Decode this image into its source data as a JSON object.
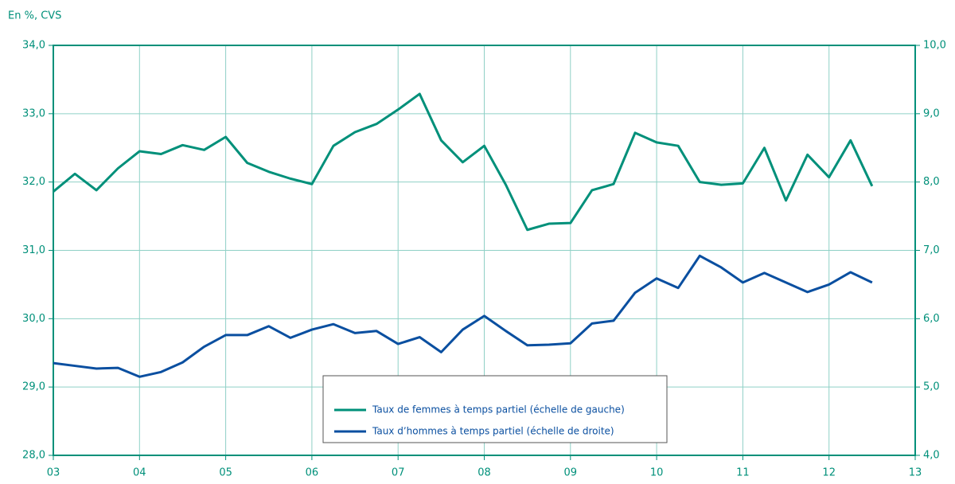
{
  "chart_data": {
    "type": "line",
    "unit_label": "En %, CVS",
    "x": [
      3,
      3.25,
      3.5,
      3.75,
      4,
      4.25,
      4.5,
      4.75,
      5,
      5.25,
      5.5,
      5.75,
      6,
      6.25,
      6.5,
      6.75,
      7,
      7.25,
      7.5,
      7.75,
      8,
      8.25,
      8.5,
      8.75,
      9,
      9.25,
      9.5,
      9.75,
      10,
      10.25,
      10.5,
      10.75,
      11,
      11.25,
      11.5,
      11.75,
      12,
      12.25,
      12.5
    ],
    "series": [
      {
        "name": "Taux de femmes à temps partiel (échelle de gauche)",
        "color": "#00907a",
        "axis": "y",
        "values": [
          31.86,
          32.12,
          31.88,
          32.2,
          32.45,
          32.41,
          32.54,
          32.47,
          32.66,
          32.28,
          32.15,
          32.05,
          31.97,
          32.53,
          32.73,
          32.85,
          33.06,
          33.29,
          32.61,
          32.29,
          32.53,
          31.96,
          31.3,
          31.39,
          31.4,
          31.88,
          31.97,
          32.72,
          32.58,
          32.53,
          32.0,
          31.96,
          31.98,
          32.5,
          31.73,
          32.4,
          32.07,
          32.61,
          31.94
        ]
      },
      {
        "name": "Taux d’hommes à temps partiel (échelle de droite)",
        "color": "#0a4fa0",
        "axis": "y2",
        "values": [
          5.35,
          5.31,
          5.27,
          5.28,
          5.15,
          5.22,
          5.36,
          5.59,
          5.76,
          5.76,
          5.89,
          5.72,
          5.84,
          5.92,
          5.79,
          5.82,
          5.63,
          5.73,
          5.51,
          5.84,
          6.04,
          5.82,
          5.61,
          5.62,
          5.64,
          5.93,
          5.97,
          6.38,
          6.59,
          6.45,
          6.92,
          6.75,
          6.53,
          6.67,
          6.53,
          6.39,
          6.5,
          6.68,
          6.53
        ]
      }
    ],
    "xlim": [
      3,
      13
    ],
    "xticks": [
      {
        "value": 3,
        "label": "03"
      },
      {
        "value": 4,
        "label": "04"
      },
      {
        "value": 5,
        "label": "05"
      },
      {
        "value": 6,
        "label": "06"
      },
      {
        "value": 7,
        "label": "07"
      },
      {
        "value": 8,
        "label": "08"
      },
      {
        "value": 9,
        "label": "09"
      },
      {
        "value": 10,
        "label": "10"
      },
      {
        "value": 11,
        "label": "11"
      },
      {
        "value": 12,
        "label": "12"
      },
      {
        "value": 13,
        "label": "13"
      }
    ],
    "ylim": [
      28,
      34
    ],
    "yticks": [
      {
        "value": 28,
        "label": "28,0"
      },
      {
        "value": 29,
        "label": "29,0"
      },
      {
        "value": 30,
        "label": "30,0"
      },
      {
        "value": 31,
        "label": "31,0"
      },
      {
        "value": 32,
        "label": "32,0"
      },
      {
        "value": 33,
        "label": "33,0"
      },
      {
        "value": 34,
        "label": "34,0"
      }
    ],
    "y2lim": [
      4,
      10
    ],
    "y2ticks": [
      {
        "value": 4,
        "label": "4,0"
      },
      {
        "value": 5,
        "label": "5,0"
      },
      {
        "value": 6,
        "label": "6,0"
      },
      {
        "value": 7,
        "label": "7,0"
      },
      {
        "value": 8,
        "label": "8,0"
      },
      {
        "value": 9,
        "label": "9,0"
      },
      {
        "value": 10,
        "label": "10,0"
      }
    ],
    "grid": true
  }
}
